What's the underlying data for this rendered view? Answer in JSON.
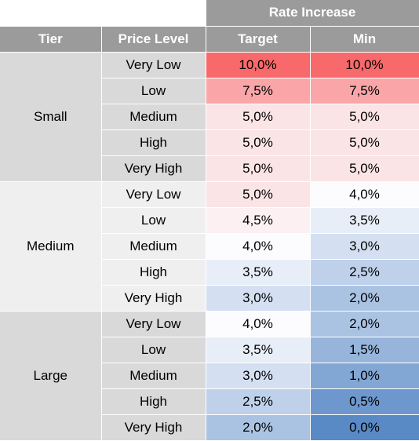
{
  "header": {
    "group_label": "Rate Increase",
    "columns": [
      "Tier",
      "Price Level",
      "Target",
      "Min"
    ]
  },
  "colors": {
    "header_bg": "#9b9b9b",
    "tier_small_bg": "#d9d9d9",
    "tier_medium_bg": "#efefef",
    "tier_large_bg": "#d9d9d9",
    "high_red": "#f8696b",
    "neutral": "#fcfcff",
    "low_blue": "#5a8ac6"
  },
  "tiers": [
    {
      "name": "Small",
      "rows": [
        {
          "level": "Very Low",
          "target": "10,0%",
          "min": "10,0%"
        },
        {
          "level": "Low",
          "target": "7,5%",
          "min": "7,5%"
        },
        {
          "level": "Medium",
          "target": "5,0%",
          "min": "5,0%"
        },
        {
          "level": "High",
          "target": "5,0%",
          "min": "5,0%"
        },
        {
          "level": "Very High",
          "target": "5,0%",
          "min": "5,0%"
        }
      ]
    },
    {
      "name": "Medium",
      "rows": [
        {
          "level": "Very Low",
          "target": "5,0%",
          "min": "4,0%"
        },
        {
          "level": "Low",
          "target": "4,5%",
          "min": "3,5%"
        },
        {
          "level": "Medium",
          "target": "4,0%",
          "min": "3,0%"
        },
        {
          "level": "High",
          "target": "3,5%",
          "min": "2,5%"
        },
        {
          "level": "Very High",
          "target": "3,0%",
          "min": "2,0%"
        }
      ]
    },
    {
      "name": "Large",
      "rows": [
        {
          "level": "Very Low",
          "target": "4,0%",
          "min": "2,0%"
        },
        {
          "level": "Low",
          "target": "3,5%",
          "min": "1,5%"
        },
        {
          "level": "Medium",
          "target": "3,0%",
          "min": "1,0%"
        },
        {
          "level": "High",
          "target": "2,5%",
          "min": "0,5%"
        },
        {
          "level": "Very High",
          "target": "2,0%",
          "min": "0,0%"
        }
      ]
    }
  ]
}
